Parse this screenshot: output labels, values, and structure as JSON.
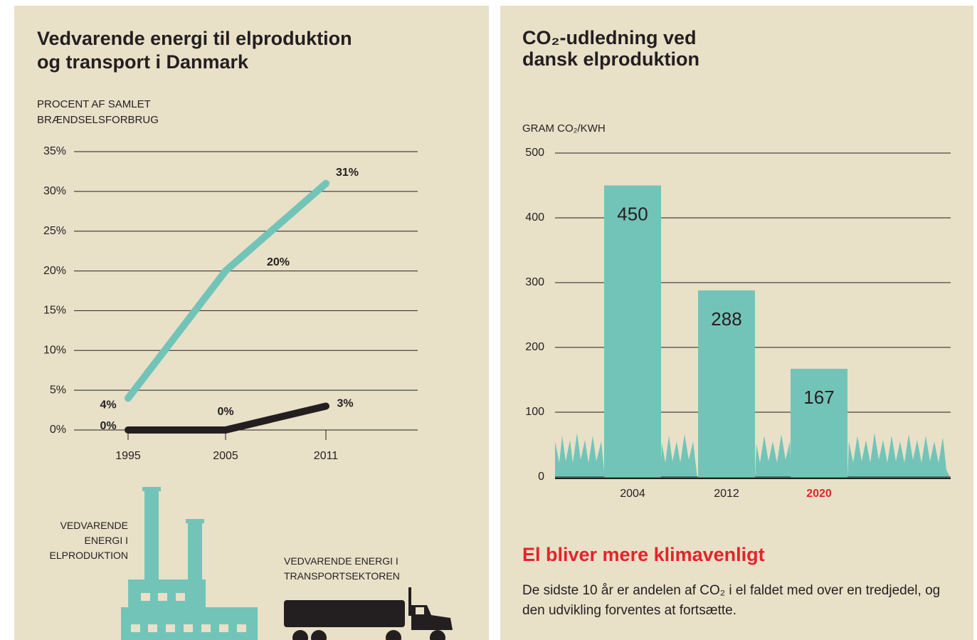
{
  "chart_data": [
    {
      "type": "line",
      "title": "Vedvarende energi til elproduktion og transport i Danmark",
      "y_label": "PROCENT AF SAMLET BRÆNDSELSFORBRUG",
      "categories": [
        "1995",
        "2005",
        "2011"
      ],
      "series": [
        {
          "name": "VEDVARENDE ENERGI I ELPRODUKTION",
          "color": "#72c4b8",
          "values": [
            4,
            20,
            31
          ],
          "value_labels": [
            "4%",
            "20%",
            "31%"
          ]
        },
        {
          "name": "VEDVARENDE ENERGI I TRANSPORTSEKTOREN",
          "color": "#231f20",
          "values": [
            0,
            0,
            3
          ],
          "value_labels": [
            "0%",
            "0%",
            "3%"
          ]
        }
      ],
      "ylim": [
        0,
        35
      ],
      "yticks": [
        {
          "value": 0,
          "label": "0%"
        },
        {
          "value": 5,
          "label": "5%"
        },
        {
          "value": 10,
          "label": "10%"
        },
        {
          "value": 15,
          "label": "15%"
        },
        {
          "value": 20,
          "label": "20%"
        },
        {
          "value": 25,
          "label": "25%"
        },
        {
          "value": 30,
          "label": "30%"
        },
        {
          "value": 35,
          "label": "35%"
        }
      ],
      "grid": true
    },
    {
      "type": "bar",
      "title": "CO₂-udledning ved dansk elproduktion",
      "y_label": "GRAM CO₂/KWH",
      "categories": [
        "2004",
        "2012",
        "2020"
      ],
      "category_colors": [
        "#231f20",
        "#231f20",
        "#e3242b"
      ],
      "values": [
        450,
        288,
        167
      ],
      "color": "#72c4b8",
      "ylim": [
        0,
        500
      ],
      "yticks": [
        0,
        100,
        200,
        300,
        400,
        500
      ],
      "grid": true
    }
  ],
  "text": {
    "heading": "El bliver mere klimavenligt",
    "body": "De sidste 10 år er andelen af CO₂ i el faldet med over en tredjedel, og den udvikling forventes at fortsætte."
  }
}
